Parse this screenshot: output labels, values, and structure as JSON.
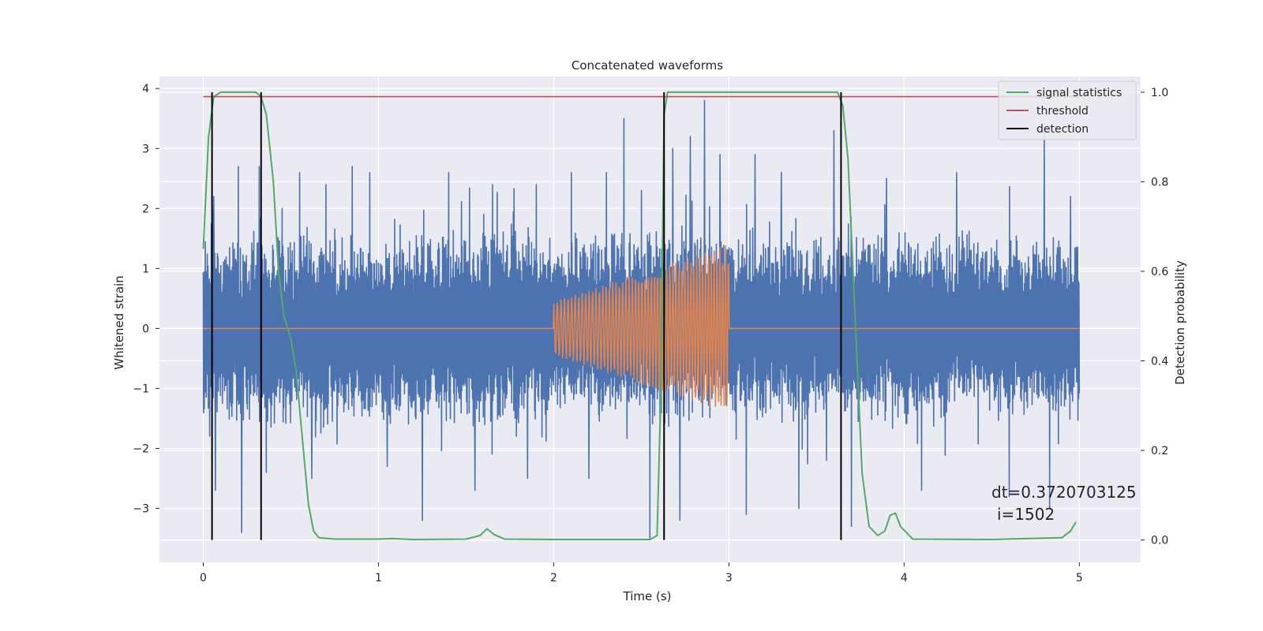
{
  "chart_data": {
    "type": "line",
    "title": "Concatenated waveforms",
    "xlabel": "Time (s)",
    "ylabel": "Whitened strain",
    "y2label": "Detection probability",
    "xlim": [
      -0.25,
      5.35
    ],
    "ylim": [
      -3.9,
      4.2
    ],
    "y2lim": [
      -0.05,
      1.035
    ],
    "xticks": [
      0,
      1,
      2,
      3,
      4,
      5
    ],
    "xtick_labels": [
      "0",
      "1",
      "2",
      "3",
      "4",
      "5"
    ],
    "yticks": [
      -3,
      -2,
      -1,
      0,
      1,
      2,
      3,
      4
    ],
    "ytick_labels": [
      "−3",
      "−2",
      "−1",
      "0",
      "1",
      "2",
      "3",
      "4"
    ],
    "y2ticks": [
      0.0,
      0.2,
      0.4,
      0.6,
      0.8,
      1.0
    ],
    "y2tick_labels": [
      "0.0",
      "0.2",
      "0.4",
      "0.6",
      "0.8",
      "1.0"
    ],
    "grid": true,
    "legend_position": "top-right",
    "colors": {
      "strain": "#4c72b0",
      "injection": "#dd8452",
      "signal": "#55a868",
      "threshold": "#c44e52",
      "detection": "#000000",
      "background": "#eaeaf2",
      "grid": "#ffffff"
    },
    "series": [
      {
        "name": "",
        "axis": "left",
        "color": "#4c72b0",
        "description_free": true,
        "x_range": [
          0,
          5
        ],
        "envelope": {
          "x": [
            0,
            0.5,
            1,
            1.5,
            2,
            2.5,
            3,
            3.5,
            4,
            4.5,
            5
          ],
          "upper": [
            1.5,
            1.6,
            1.5,
            1.6,
            1.5,
            1.6,
            1.6,
            1.5,
            1.6,
            1.5,
            1.4
          ],
          "lower": [
            -1.5,
            -1.6,
            -1.5,
            -1.6,
            -1.5,
            -1.6,
            -1.6,
            -1.5,
            -1.6,
            -1.5,
            -1.5
          ]
        },
        "spikes": [
          [
            0.06,
            2.2
          ],
          [
            0.07,
            -2.7
          ],
          [
            0.2,
            2.7
          ],
          [
            0.22,
            -3.4
          ],
          [
            0.32,
            2.7
          ],
          [
            0.36,
            -2.4
          ],
          [
            0.45,
            2.0
          ],
          [
            0.55,
            2.6
          ],
          [
            0.62,
            -2.5
          ],
          [
            0.7,
            2.4
          ],
          [
            0.85,
            2.7
          ],
          [
            0.95,
            2.6
          ],
          [
            1.05,
            -2.3
          ],
          [
            1.25,
            -3.2
          ],
          [
            1.4,
            2.6
          ],
          [
            1.55,
            -2.7
          ],
          [
            1.6,
            1.9
          ],
          [
            1.65,
            2.4
          ],
          [
            1.85,
            -2.5
          ],
          [
            1.9,
            2.4
          ],
          [
            2.1,
            2.6
          ],
          [
            2.2,
            -2.5
          ],
          [
            2.3,
            2.6
          ],
          [
            2.4,
            3.5
          ],
          [
            2.5,
            2.3
          ],
          [
            2.55,
            -3.5
          ],
          [
            2.68,
            3.0
          ],
          [
            2.72,
            -3.2
          ],
          [
            2.78,
            3.2
          ],
          [
            2.86,
            3.8
          ],
          [
            2.95,
            2.9
          ],
          [
            3.1,
            -3.1
          ],
          [
            3.15,
            2.9
          ],
          [
            3.3,
            2.6
          ],
          [
            3.4,
            -3.0
          ],
          [
            3.6,
            3.3
          ],
          [
            3.7,
            -3.3
          ],
          [
            3.9,
            2.5
          ],
          [
            4.1,
            -2.7
          ],
          [
            4.3,
            2.6
          ],
          [
            4.6,
            -2.8
          ],
          [
            4.8,
            3.3
          ],
          [
            4.83,
            -3.0
          ],
          [
            4.95,
            2.2
          ]
        ]
      },
      {
        "name": "",
        "axis": "left",
        "color": "#dd8452",
        "chirp": {
          "t_start": 2.0,
          "t_end": 3.0,
          "amp_start": 0.45,
          "amp_end": 1.4,
          "cycles": 48
        }
      },
      {
        "name": "signal statistics",
        "axis": "right",
        "color": "#55a868",
        "x": [
          0,
          0.03,
          0.06,
          0.1,
          0.2,
          0.3,
          0.33,
          0.36,
          0.4,
          0.43,
          0.46,
          0.5,
          0.53,
          0.56,
          0.6,
          0.63,
          0.66,
          0.75,
          1.0,
          1.08,
          1.2,
          1.5,
          1.58,
          1.62,
          1.66,
          1.72,
          2.0,
          2.4,
          2.55,
          2.59,
          2.61,
          2.63,
          2.65,
          2.7,
          3.0,
          3.5,
          3.62,
          3.65,
          3.68,
          3.72,
          3.76,
          3.8,
          3.85,
          3.89,
          3.92,
          3.95,
          3.98,
          4.05,
          4.5,
          4.9,
          4.95,
          4.98
        ],
        "y": [
          0.65,
          0.9,
          0.99,
          1.0,
          1.0,
          1.0,
          0.99,
          0.95,
          0.8,
          0.6,
          0.5,
          0.45,
          0.38,
          0.25,
          0.08,
          0.02,
          0.005,
          0.002,
          0.002,
          0.003,
          0.001,
          0.002,
          0.01,
          0.025,
          0.012,
          0.002,
          0.001,
          0.001,
          0.001,
          0.01,
          0.3,
          0.95,
          1.0,
          1.0,
          1.0,
          1.0,
          1.0,
          0.97,
          0.85,
          0.5,
          0.15,
          0.03,
          0.01,
          0.02,
          0.055,
          0.06,
          0.03,
          0.002,
          0.001,
          0.005,
          0.02,
          0.04
        ]
      },
      {
        "name": "threshold",
        "axis": "right",
        "color": "#c44e52",
        "x": [
          0,
          5
        ],
        "y": [
          0.99,
          0.99
        ]
      },
      {
        "name": "detection",
        "axis": "right",
        "color": "#000000",
        "vlines": [
          0.05,
          0.33,
          2.63,
          3.64
        ],
        "ymin": 0.0,
        "ymax": 1.0
      }
    ],
    "annotations": [
      "dt=0.3720703125",
      "i=1502"
    ]
  }
}
